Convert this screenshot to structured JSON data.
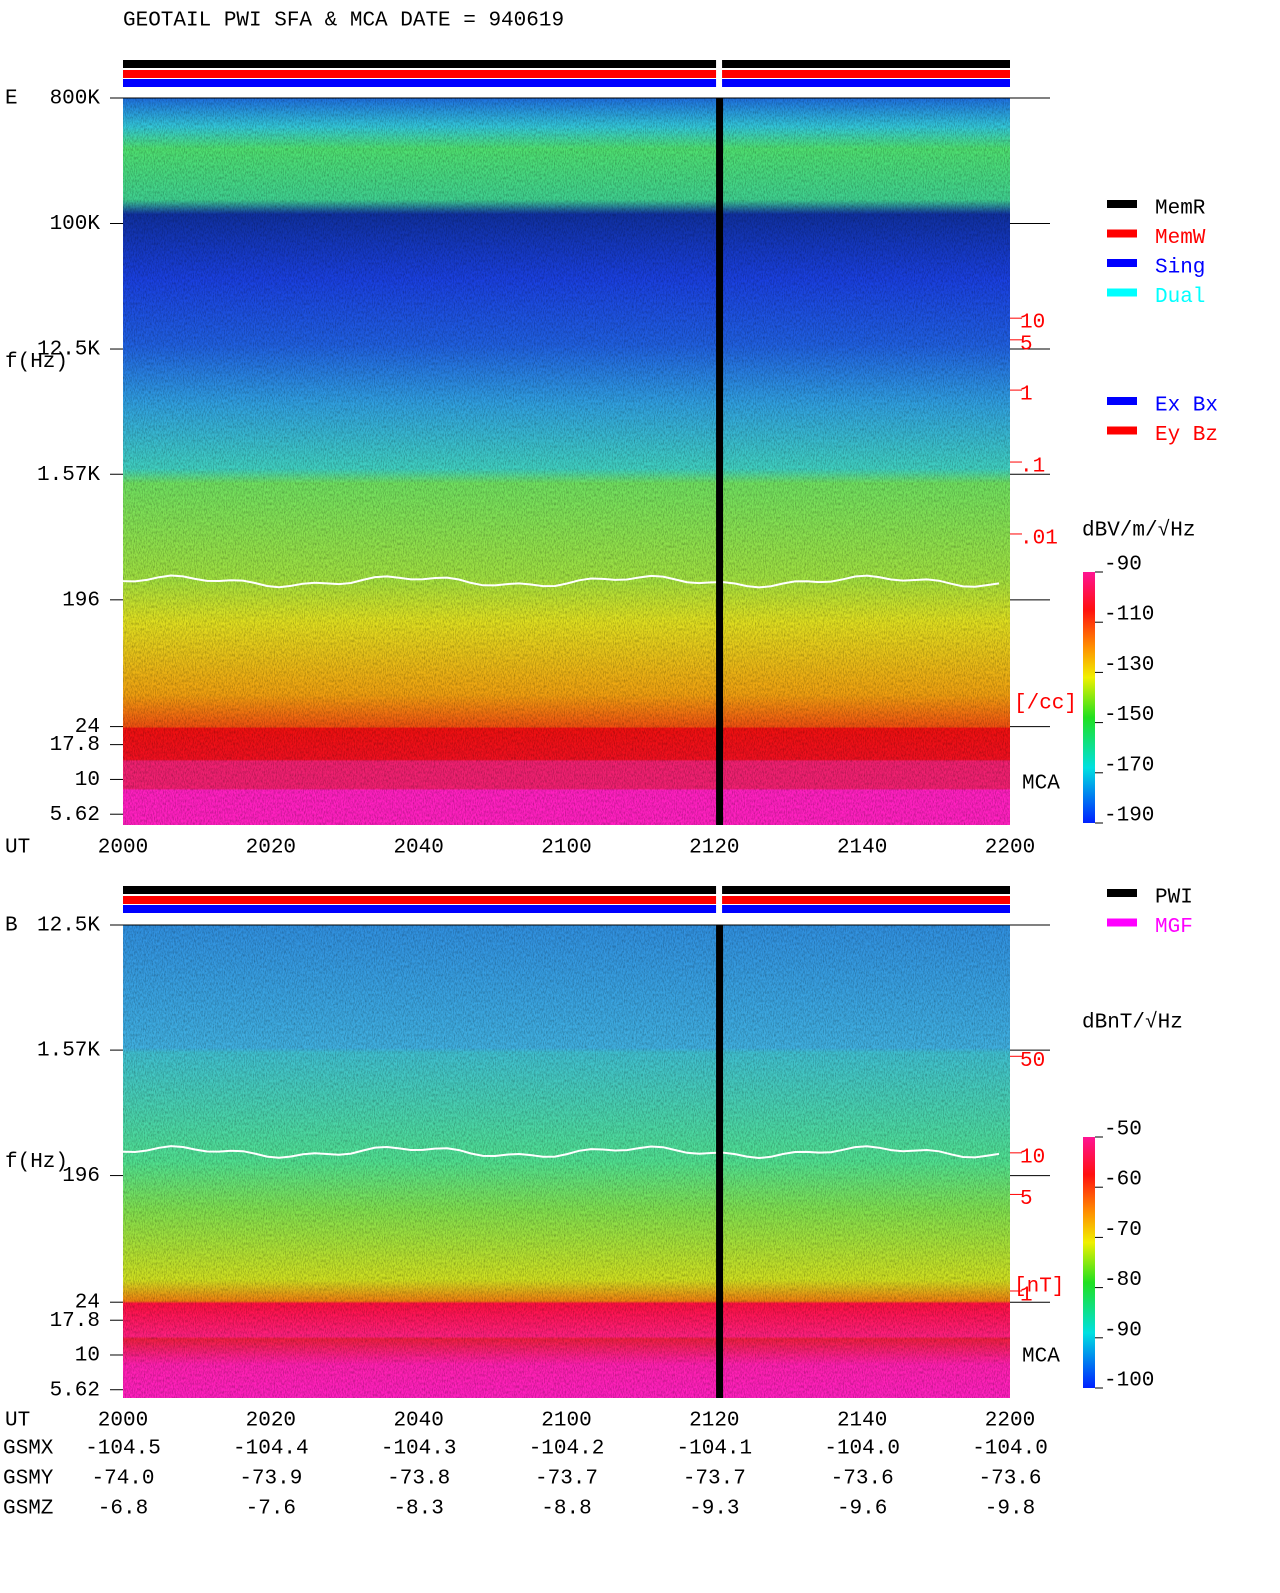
{
  "title": "GEOTAIL  PWI SFA & MCA   DATE = 940619",
  "legend_modes": [
    {
      "name": "MemR",
      "color": "#000000"
    },
    {
      "name": "MemW",
      "color": "#ff0000"
    },
    {
      "name": "Sing",
      "color": "#0000ff"
    },
    {
      "name": "Dual",
      "color": "#00ffff"
    }
  ],
  "legend_components": [
    {
      "name": "Ex Bx",
      "color": "#0000ff"
    },
    {
      "name": "Ey Bz",
      "color": "#ff0000"
    }
  ],
  "legend_sources": [
    {
      "name": "PWI",
      "color": "#000000"
    },
    {
      "name": "MGF",
      "color": "#ff00ff"
    }
  ],
  "panels": [
    {
      "label": "E",
      "y_label": "f(Hz)",
      "x_label": "UT",
      "ylim": [
        4.7,
        800000
      ],
      "log_y": true,
      "yticks": [
        {
          "value": 800000,
          "label": "800K"
        },
        {
          "value": 100000,
          "label": "100K"
        },
        {
          "value": 12500,
          "label": "12.5K"
        },
        {
          "value": 1570,
          "label": "1.57K"
        },
        196,
        24,
        17.8,
        10,
        5.62
      ],
      "xticks": [
        "2000",
        "2020",
        "2040",
        "2100",
        "2120",
        "2140",
        "2200"
      ],
      "y2lim": [
        9e-07,
        11500
      ],
      "y2ticks": [
        10,
        5,
        1,
        {
          "value": 0.1,
          "label": ".1"
        },
        {
          "value": 0.01,
          "label": ".01"
        }
      ],
      "y2_unit": "[/cc]",
      "mca_label": "MCA",
      "colorbar": {
        "unit": "dBV/m/√Hz",
        "lim": [
          -190,
          -90
        ],
        "ticks": [
          -90,
          -110,
          -130,
          -150,
          -170,
          -190
        ]
      }
    },
    {
      "label": "B",
      "y_label": "f(Hz)",
      "x_label": "UT",
      "ylim": [
        4.9,
        12500
      ],
      "log_y": true,
      "yticks": [
        {
          "value": 12500,
          "label": "12.5K"
        },
        {
          "value": 1570,
          "label": "1.57K"
        },
        196,
        24,
        17.8,
        10,
        5.62
      ],
      "xticks": [
        "2000",
        "2020",
        "2040",
        "2100",
        "2120",
        "2140",
        "2200"
      ],
      "y2lim": [
        0.168,
        446
      ],
      "y2ticks": [
        50,
        10,
        5,
        1
      ],
      "y2_unit": "[nT]",
      "mca_label": "MCA",
      "colorbar": {
        "unit": "dBnT/√Hz",
        "lim": [
          -100,
          -50
        ],
        "ticks": [
          -50,
          -60,
          -70,
          -80,
          -90,
          -100
        ]
      }
    }
  ],
  "orbit": [
    {
      "name": "GSMX",
      "values": [
        "-104.5",
        "-104.4",
        "-104.3",
        "-104.2",
        "-104.1",
        "-104.0",
        "-104.0"
      ]
    },
    {
      "name": "GSMY",
      "values": [
        "-74.0",
        "-73.9",
        "-73.8",
        "-73.7",
        "-73.7",
        "-73.6",
        "-73.6"
      ]
    },
    {
      "name": "GSMZ",
      "values": [
        "-6.8",
        "-7.6",
        "-8.3",
        "-8.8",
        "-9.3",
        "-9.6",
        "-9.8"
      ]
    }
  ]
}
